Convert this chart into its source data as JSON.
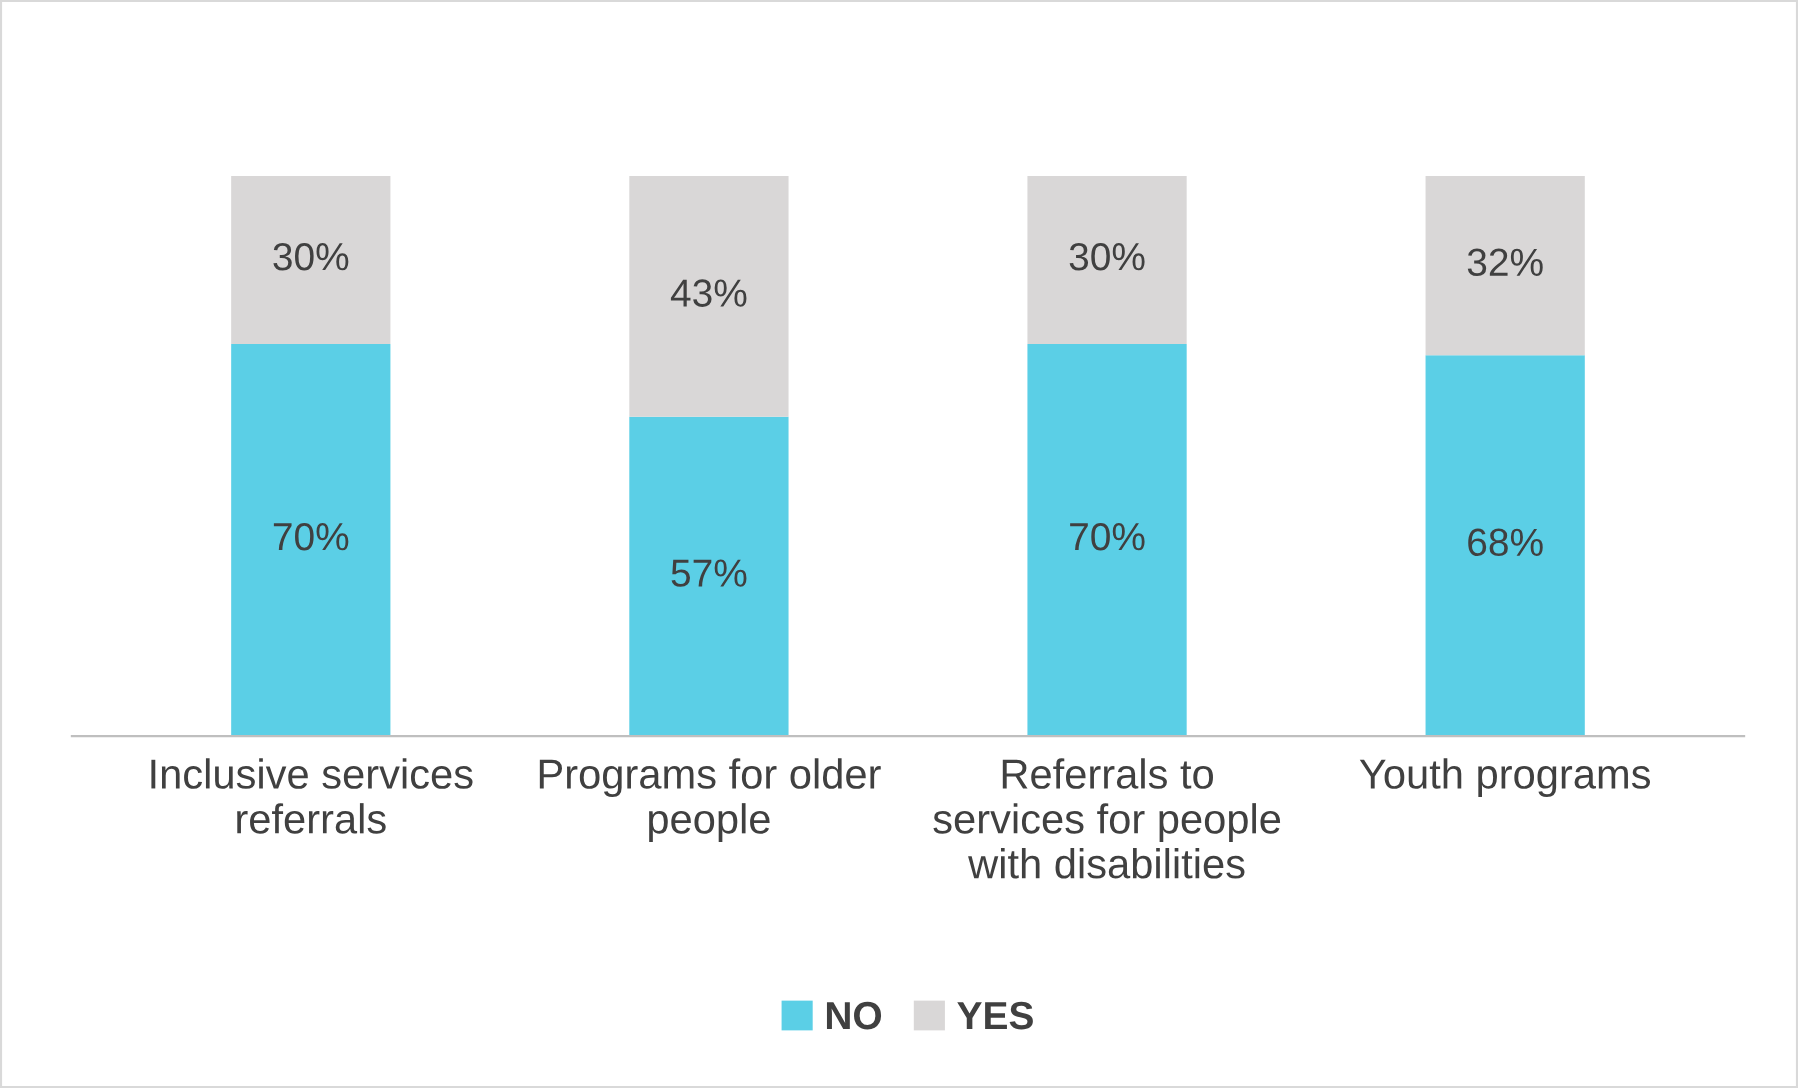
{
  "chart_data": {
    "type": "bar",
    "stacked": true,
    "categories": [
      "Inclusive services\nreferrals",
      "Programs for older\npeople",
      "Referrals to\nservices for people\nwith disabilities",
      "Youth programs"
    ],
    "series": [
      {
        "name": "NO",
        "color": "#5bcfe6",
        "values": [
          70,
          57,
          70,
          68
        ],
        "value_labels": [
          "70%",
          "57%",
          "70%",
          "68%"
        ]
      },
      {
        "name": "YES",
        "color": "#d9d7d7",
        "values": [
          30,
          43,
          30,
          32
        ],
        "value_labels": [
          "30%",
          "43%",
          "30%",
          "32%"
        ]
      }
    ],
    "legend": "bottom",
    "grid": false
  }
}
